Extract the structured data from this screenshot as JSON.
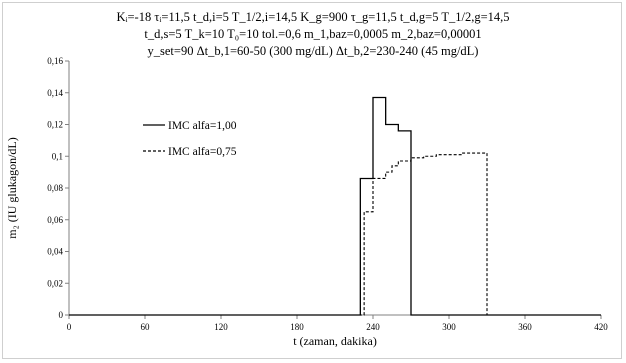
{
  "header": {
    "line1": "Kᵢ=-18  τᵢ=11,5  t_d,i=5  T_1/2,i=14,5  K_g=900  τ_g=11,5  t_d,g=5  T_1/2,g=14,5",
    "line2": "t_d,s=5  T_k=10  T₀=10  tol.=0,6  m_1,baz=0,0005  m_2,baz=0,00001",
    "line3": "y_set=90  Δt_b,1=60-50 (300 mg/dL)  Δt_b,2=230-240 (45 mg/dL)"
  },
  "chart_data": {
    "type": "line",
    "xlabel": "t (zaman, dakika)",
    "ylabel": "m₂ (IU glukagon/dL)",
    "xlim": [
      0,
      420
    ],
    "ylim": [
      0,
      0.16
    ],
    "x_ticks": [
      "0",
      "60",
      "120",
      "180",
      "240",
      "300",
      "360",
      "420"
    ],
    "y_ticks": [
      "0",
      "0,02",
      "0,04",
      "0,06",
      "0,08",
      "0,1",
      "0,12",
      "0,14",
      "0,16"
    ],
    "x_tick_values": [
      0,
      60,
      120,
      180,
      240,
      300,
      360,
      420
    ],
    "y_tick_values": [
      0,
      0.02,
      0.04,
      0.06,
      0.08,
      0.1,
      0.12,
      0.14,
      0.16
    ],
    "grid": false,
    "legend_position": "left",
    "series": [
      {
        "name": "IMC alfa=1,00",
        "style": "solid",
        "x": [
          0,
          230,
          230,
          240,
          240,
          250,
          250,
          260,
          260,
          270,
          270,
          420
        ],
        "y": [
          0,
          0,
          0.086,
          0.086,
          0.137,
          0.137,
          0.12,
          0.12,
          0.116,
          0.116,
          0,
          0
        ]
      },
      {
        "name": "IMC alfa=0,75",
        "style": "dashed",
        "x": [
          0,
          233,
          233,
          240,
          240,
          250,
          250,
          255,
          255,
          260,
          260,
          270,
          270,
          280,
          280,
          290,
          290,
          300,
          300,
          310,
          310,
          320,
          320,
          330,
          330,
          420
        ],
        "y": [
          0,
          0,
          0.065,
          0.065,
          0.086,
          0.086,
          0.09,
          0.09,
          0.094,
          0.094,
          0.097,
          0.097,
          0.099,
          0.099,
          0.1,
          0.1,
          0.101,
          0.101,
          0.101,
          0.101,
          0.102,
          0.102,
          0.102,
          0.102,
          0,
          0
        ]
      }
    ]
  }
}
